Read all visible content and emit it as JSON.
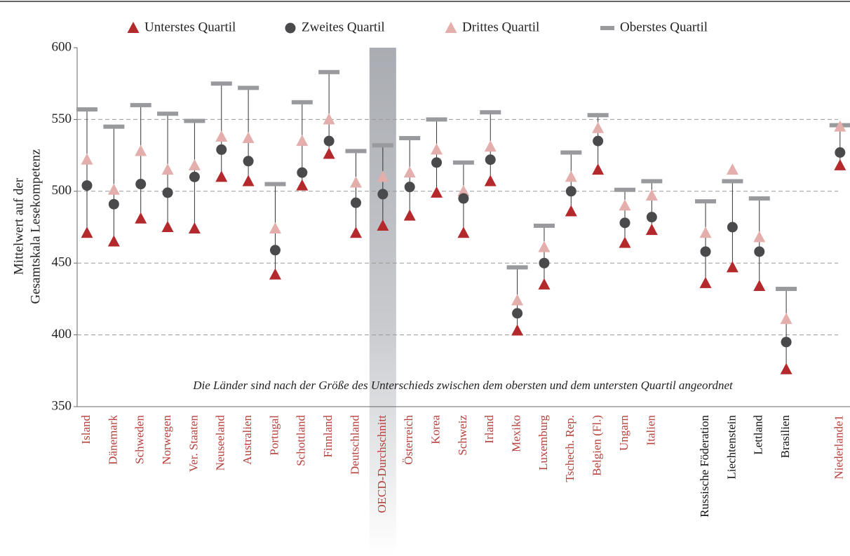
{
  "chart_data": {
    "type": "dot-range",
    "y_label": [
      "Mittelwert auf der",
      "Gesamtskala Lesekompetenz"
    ],
    "annotation": "Die Länder sind nach der Größe des Unterschieds zwischen dem obersten und dem untersten Quartil angeordnet",
    "categories": [
      "Island",
      "Dänemark",
      "Schweden",
      "Norwegen",
      "Ver. Staaten",
      "Neuseeland",
      "Australien",
      "Portugal",
      "Schottland",
      "Finnland",
      "Deutschland",
      "OECD-Durchschnitt",
      "Österreich",
      "Korea",
      "Schweiz",
      "Irland",
      "Mexiko",
      "Luxemburg",
      "Tschech. Rep.",
      "Belgien (Fl.)",
      "Ungarn",
      "Italien",
      null,
      "Russische Föderation",
      "Liechtenstein",
      "Lettland",
      "Brasilien",
      null,
      "Niederlande1"
    ],
    "label_colors": [
      "#b5403c",
      "#b5403c",
      "#b5403c",
      "#b5403c",
      "#b5403c",
      "#b5403c",
      "#b5403c",
      "#b5403c",
      "#b5403c",
      "#b5403c",
      "#b5403c",
      "#b5403c",
      "#b5403c",
      "#b5403c",
      "#b5403c",
      "#b5403c",
      "#b5403c",
      "#b5403c",
      "#b5403c",
      "#b5403c",
      "#b5403c",
      "#b5403c",
      null,
      "#111111",
      "#111111",
      "#111111",
      "#111111",
      null,
      "#b5403c"
    ],
    "highlight_category": 11,
    "series": [
      {
        "name": "Unterstes Quartil",
        "marker": "triangle",
        "color": "#b3292c",
        "values": [
          471,
          465,
          481,
          475,
          474,
          510,
          507,
          442,
          504,
          526,
          471,
          476,
          483,
          499,
          471,
          507,
          403,
          435,
          486,
          515,
          464,
          473,
          null,
          436,
          447,
          434,
          376,
          null,
          518
        ]
      },
      {
        "name": "Zweites Quartil",
        "marker": "circle",
        "color": "#4a4a4c",
        "values": [
          504,
          491,
          505,
          499,
          510,
          529,
          521,
          459,
          513,
          535,
          492,
          498,
          503,
          520,
          495,
          522,
          415,
          450,
          500,
          535,
          478,
          482,
          null,
          458,
          475,
          458,
          395,
          null,
          527
        ]
      },
      {
        "name": "Drittes Quartil",
        "marker": "triangle",
        "color": "#e3aeab",
        "values": [
          522,
          501,
          528,
          515,
          518,
          538,
          537,
          474,
          535,
          550,
          506,
          510,
          513,
          529,
          500,
          531,
          424,
          461,
          510,
          544,
          490,
          497,
          null,
          471,
          515,
          468,
          411,
          null,
          545
        ]
      },
      {
        "name": "Oberstes Quartil",
        "marker": "bar",
        "color": "#999a9d",
        "values": [
          557,
          545,
          560,
          554,
          549,
          575,
          572,
          505,
          562,
          583,
          528,
          532,
          537,
          550,
          520,
          555,
          447,
          476,
          527,
          553,
          501,
          507,
          null,
          493,
          507,
          495,
          432,
          null,
          546
        ]
      }
    ],
    "ylim": [
      350,
      600
    ],
    "yticks": [
      350,
      400,
      450,
      500,
      550,
      600
    ],
    "grid": true
  }
}
